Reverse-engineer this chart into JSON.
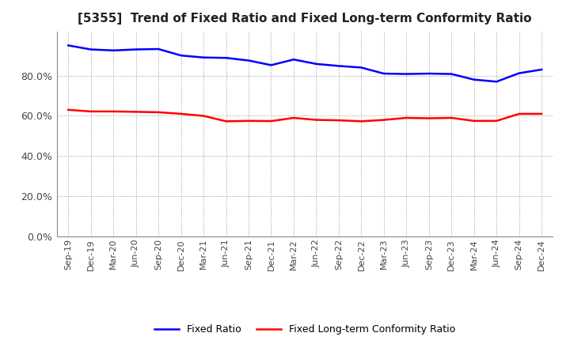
{
  "title": "[5355]  Trend of Fixed Ratio and Fixed Long-term Conformity Ratio",
  "x_labels": [
    "Sep-19",
    "Dec-19",
    "Mar-20",
    "Jun-20",
    "Sep-20",
    "Dec-20",
    "Mar-21",
    "Jun-21",
    "Sep-21",
    "Dec-21",
    "Mar-22",
    "Jun-22",
    "Sep-22",
    "Dec-22",
    "Mar-23",
    "Jun-23",
    "Sep-23",
    "Dec-23",
    "Mar-24",
    "Jun-24",
    "Sep-24",
    "Dec-24"
  ],
  "fixed_ratio": [
    0.95,
    0.93,
    0.925,
    0.93,
    0.932,
    0.9,
    0.89,
    0.888,
    0.875,
    0.852,
    0.88,
    0.858,
    0.848,
    0.84,
    0.81,
    0.808,
    0.81,
    0.808,
    0.78,
    0.77,
    0.812,
    0.83
  ],
  "fixed_lt_ratio": [
    0.63,
    0.622,
    0.622,
    0.62,
    0.618,
    0.61,
    0.6,
    0.573,
    0.575,
    0.574,
    0.59,
    0.58,
    0.578,
    0.573,
    0.58,
    0.59,
    0.588,
    0.59,
    0.575,
    0.575,
    0.61,
    0.61
  ],
  "fixed_ratio_color": "#0000FF",
  "fixed_lt_ratio_color": "#FF0000",
  "ylim": [
    0.0,
    1.02
  ],
  "yticks": [
    0.0,
    0.2,
    0.4,
    0.6,
    0.8
  ],
  "background_color": "#FFFFFF",
  "grid_color": "#888888",
  "legend_fixed": "Fixed Ratio",
  "legend_fixed_lt": "Fixed Long-term Conformity Ratio",
  "title_fontsize": 11,
  "tick_fontsize": 8,
  "line_width": 1.8
}
